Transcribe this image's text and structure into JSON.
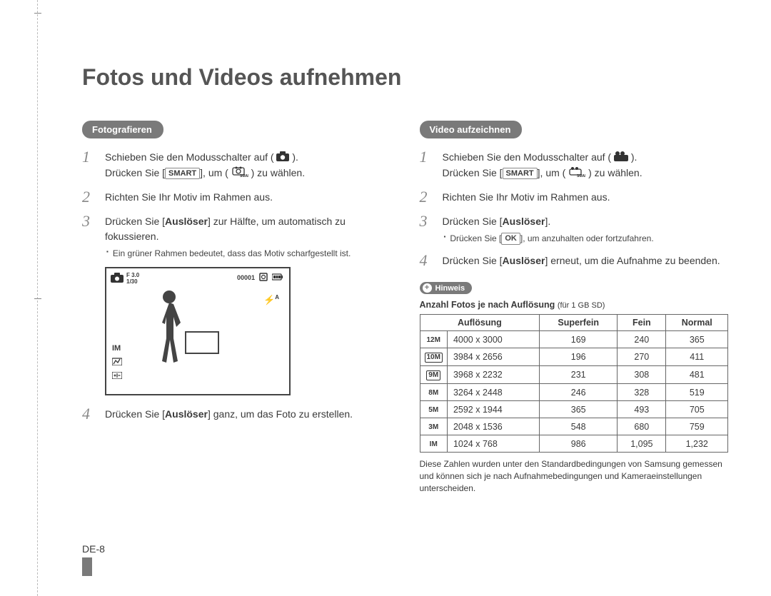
{
  "title": "Fotos und Videos aufnehmen",
  "left": {
    "heading": "Fotografieren",
    "steps": {
      "s1": {
        "pre": "Schieben Sie den Modusschalter auf (",
        "post": ").",
        "line2a": "Drücken Sie [",
        "line2b": "], um (",
        "line2c": ") zu wählen.",
        "smart": "SMART"
      },
      "s2": "Richten Sie Ihr Motiv im Rahmen aus.",
      "s3": {
        "a": "Drücken Sie [",
        "bold": "Auslöser",
        "b": "] zur Hälfte, um automatisch zu fokussieren.",
        "bullet": "Ein grüner Rahmen bedeutet, dass das Motiv scharfgestellt ist."
      },
      "s4": {
        "a": "Drücken Sie [",
        "bold": "Auslöser",
        "b": "] ganz, um das Foto zu erstellen."
      }
    },
    "preview": {
      "f": "F 3.0",
      "shutter": "1/30",
      "counter": "00001",
      "flash": "A",
      "res": "IM"
    }
  },
  "right": {
    "heading": "Video aufzeichnen",
    "steps": {
      "s1": {
        "pre": "Schieben Sie den Modusschalter auf (",
        "post": ").",
        "line2a": "Drücken Sie [",
        "line2b": "], um (",
        "line2c": ") zu wählen.",
        "smart": "SMART"
      },
      "s2": "Richten Sie Ihr Motiv im Rahmen aus.",
      "s3": {
        "a": "Drücken Sie [",
        "bold": "Auslöser",
        "b": "].",
        "bullet_a": "Drücken Sie [",
        "bullet_ok": "OK",
        "bullet_b": "], um anzuhalten oder fortzufahren."
      },
      "s4": {
        "a": "Drücken Sie [",
        "bold": "Auslöser",
        "b": "] erneut, um die Aufnahme zu beenden."
      }
    },
    "hinweis": "Hinweis",
    "table_caption": "Anzahl Fotos je nach Auflösung",
    "table_caption_sub": "(für 1 GB SD)",
    "table": {
      "headers": [
        "Auflösung",
        "Superfein",
        "Fein",
        "Normal"
      ],
      "rows": [
        {
          "icon": "12M",
          "iconStyle": "nb",
          "dim": "4000 x 3000",
          "sf": "169",
          "f": "240",
          "n": "365"
        },
        {
          "icon": "10M",
          "iconStyle": "",
          "dim": "3984 x 2656",
          "sf": "196",
          "f": "270",
          "n": "411"
        },
        {
          "icon": "9M",
          "iconStyle": "",
          "dim": "3968 x 2232",
          "sf": "231",
          "f": "308",
          "n": "481"
        },
        {
          "icon": "8M",
          "iconStyle": "nb",
          "dim": "3264 x 2448",
          "sf": "246",
          "f": "328",
          "n": "519"
        },
        {
          "icon": "5M",
          "iconStyle": "nb",
          "dim": "2592 x 1944",
          "sf": "365",
          "f": "493",
          "n": "705"
        },
        {
          "icon": "3M",
          "iconStyle": "nb",
          "dim": "2048 x 1536",
          "sf": "548",
          "f": "680",
          "n": "759"
        },
        {
          "icon": "IM",
          "iconStyle": "nb",
          "dim": "1024 x 768",
          "sf": "986",
          "f": "1,095",
          "n": "1,232"
        }
      ]
    },
    "footnote": "Diese Zahlen wurden unter den Standardbedingungen von Samsung gemessen und können sich je nach Aufnahmebedingungen und Kameraeinstellungen unterscheiden."
  },
  "page_number": "DE-8",
  "colors": {
    "pill": "#7a7a7a",
    "text": "#3a3a3a",
    "border": "#666666"
  }
}
